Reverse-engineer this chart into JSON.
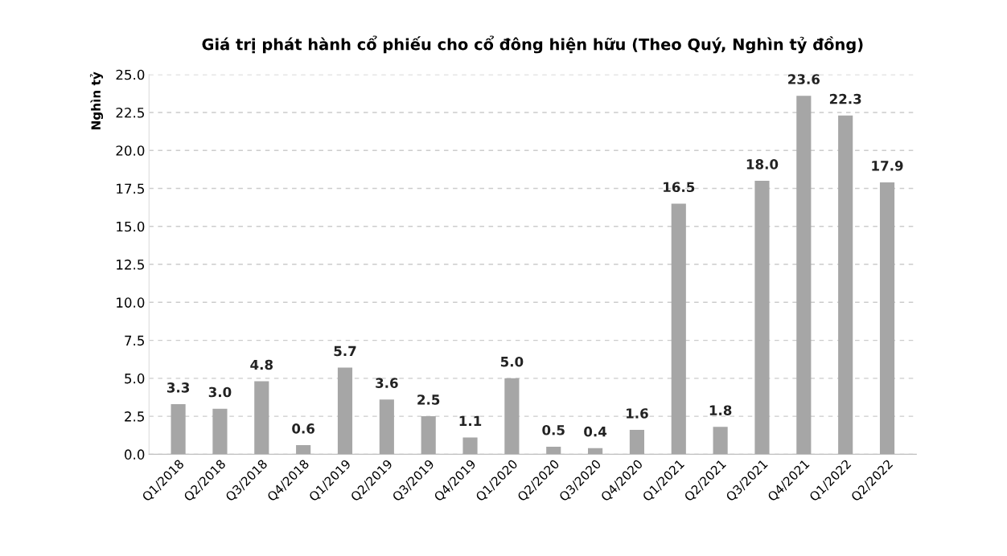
{
  "chart_data": {
    "type": "bar",
    "title": "Giá trị phát hành cổ phiếu cho cổ đông hiện hữu (Theo Quý, Nghìn tỷ đồng)",
    "ylabel": "Nghìn tỷ",
    "categories": [
      "Q1/2018",
      "Q2/2018",
      "Q3/2018",
      "Q4/2018",
      "Q1/2019",
      "Q2/2019",
      "Q3/2019",
      "Q4/2019",
      "Q1/2020",
      "Q2/2020",
      "Q3/2020",
      "Q4/2020",
      "Q1/2021",
      "Q2/2021",
      "Q3/2021",
      "Q4/2021",
      "Q1/2022",
      "Q2/2022"
    ],
    "values": [
      3.3,
      3.0,
      4.8,
      0.6,
      5.7,
      3.6,
      2.5,
      1.1,
      5.0,
      0.5,
      0.4,
      1.6,
      16.5,
      1.8,
      18.0,
      23.6,
      22.3,
      17.9
    ],
    "value_labels": [
      "3.3",
      "3.0",
      "4.8",
      "0.6",
      "5.7",
      "3.6",
      "2.5",
      "1.1",
      "5.0",
      "0.5",
      "0.4",
      "1.6",
      "16.5",
      "1.8",
      "18.0",
      "23.6",
      "22.3",
      "17.9"
    ],
    "color": "#a6a6a6",
    "ylim": [
      0,
      25
    ],
    "yticks": [
      {
        "value": 0,
        "label": "0.0"
      },
      {
        "value": 2.5,
        "label": "2.5"
      },
      {
        "value": 5,
        "label": "5.0"
      },
      {
        "value": 7.5,
        "label": "7.5"
      },
      {
        "value": 10,
        "label": "10.0"
      },
      {
        "value": 12.5,
        "label": "12.5"
      },
      {
        "value": 15,
        "label": "15.0"
      },
      {
        "value": 17.5,
        "label": "17.5"
      },
      {
        "value": 20,
        "label": "20.0"
      },
      {
        "value": 22.5,
        "label": "22.5"
      },
      {
        "value": 25,
        "label": "25.0"
      }
    ],
    "grid": "y"
  }
}
